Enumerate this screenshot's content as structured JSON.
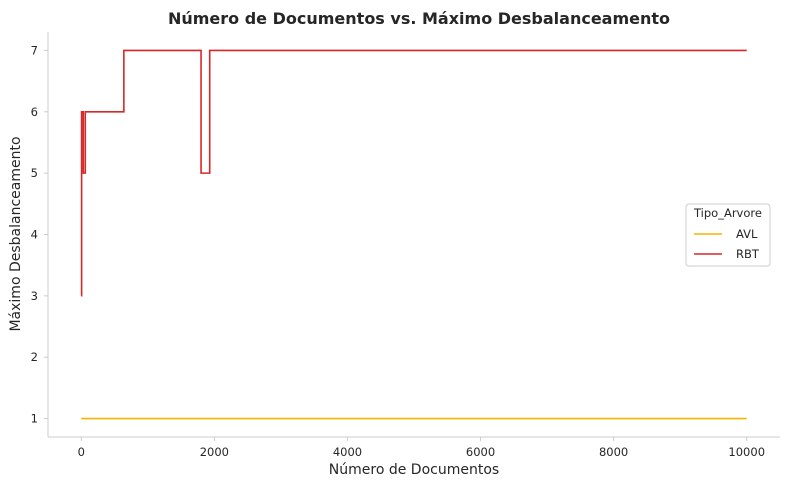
{
  "chart_data": {
    "type": "line",
    "title": "Número de Documentos vs. Máximo Desbalanceamento",
    "xlabel": "Número de Documentos",
    "ylabel": "Máximo Desbalanceamento",
    "xlim": [
      -500,
      10500
    ],
    "ylim": [
      0.7,
      7.3
    ],
    "xticks": [
      0,
      2000,
      4000,
      6000,
      8000,
      10000
    ],
    "yticks": [
      1,
      2,
      3,
      4,
      5,
      6,
      7
    ],
    "grid": false,
    "drawstyle": "steps-post",
    "legend": {
      "title": "Tipo_Arvore",
      "placement": "center-right"
    },
    "series": [
      {
        "name": "AVL",
        "color": "#f5b400",
        "x": [
          1,
          10000
        ],
        "y": [
          1,
          1
        ]
      },
      {
        "name": "RBT",
        "color": "#d62728",
        "x": [
          1,
          5,
          30,
          60,
          640,
          1800,
          1930,
          10000
        ],
        "y": [
          3,
          6,
          5,
          6,
          7,
          5,
          7,
          7
        ]
      }
    ]
  }
}
